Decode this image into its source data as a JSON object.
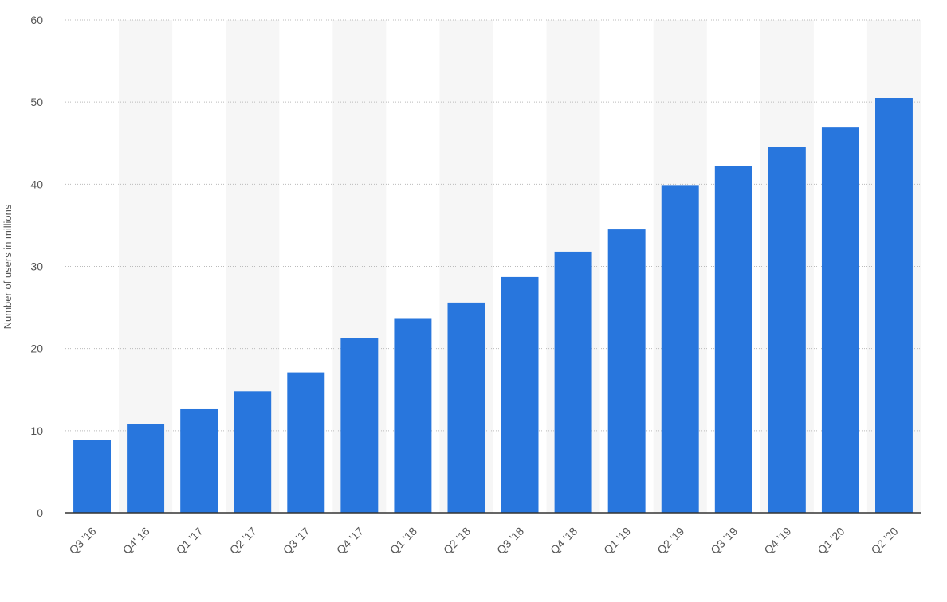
{
  "chart_data": {
    "type": "bar",
    "y_label": "Number of users in millions",
    "categories": [
      "Q3 '16",
      "Q4' 16",
      "Q1 '17",
      "Q2 '17",
      "Q3 '17",
      "Q4 '17",
      "Q1 '18",
      "Q2 '18",
      "Q3 '18",
      "Q4 '18",
      "Q1 '19",
      "Q2 '19",
      "Q3 '19",
      "Q4 '19",
      "Q1 '20",
      "Q2 '20"
    ],
    "values": [
      8.9,
      10.8,
      12.7,
      14.8,
      17.1,
      21.3,
      23.7,
      25.6,
      28.7,
      31.8,
      34.5,
      39.9,
      42.2,
      44.5,
      46.9,
      50.5
    ],
    "color": "#2876dd",
    "ylim": [
      0,
      60
    ],
    "yticks": [
      0,
      10,
      20,
      30,
      40,
      50,
      60
    ],
    "grid": true
  }
}
